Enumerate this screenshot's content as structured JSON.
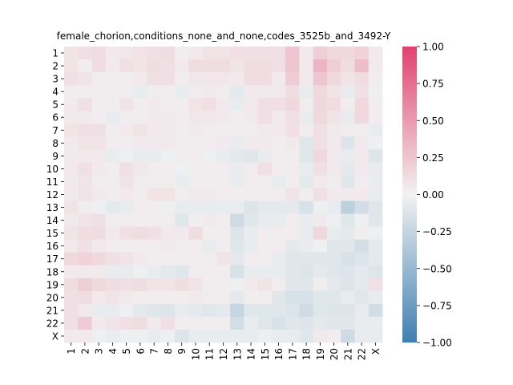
{
  "chart_data": {
    "type": "heatmap",
    "title": "female_chorion,conditions_none_and_none,codes_3525b_and_3492-Y",
    "xlabel": "",
    "ylabel": "",
    "x_categories": [
      "1",
      "2",
      "3",
      "4",
      "5",
      "6",
      "7",
      "8",
      "9",
      "10",
      "11",
      "12",
      "13",
      "14",
      "15",
      "16",
      "17",
      "18",
      "19",
      "20",
      "21",
      "22",
      "X"
    ],
    "y_categories": [
      "1",
      "2",
      "3",
      "4",
      "5",
      "6",
      "7",
      "8",
      "9",
      "10",
      "11",
      "12",
      "13",
      "14",
      "15",
      "16",
      "17",
      "18",
      "19",
      "20",
      "21",
      "22",
      "X"
    ],
    "values": [
      [
        0.08,
        0.1,
        0.12,
        0.05,
        0.06,
        0.08,
        0.1,
        0.12,
        0.03,
        0.05,
        0.08,
        0.08,
        0.1,
        0.1,
        0.1,
        0.1,
        0.25,
        0.05,
        0.2,
        0.15,
        0.15,
        0.18,
        0.05
      ],
      [
        0.08,
        0.03,
        0.12,
        0.05,
        0.1,
        0.08,
        0.12,
        0.1,
        0.05,
        0.12,
        0.12,
        0.12,
        0.08,
        0.12,
        0.12,
        0.1,
        0.25,
        0.05,
        0.35,
        0.2,
        0.12,
        0.3,
        0.05
      ],
      [
        0.1,
        0.08,
        0.03,
        0.03,
        0.03,
        0.05,
        0.1,
        0.1,
        0.03,
        0.06,
        0.06,
        0.06,
        0.05,
        0.12,
        0.12,
        0.05,
        0.22,
        0.05,
        0.25,
        0.15,
        0.08,
        0.12,
        0.03
      ],
      [
        0.03,
        0.03,
        0.03,
        0.03,
        0.03,
        -0.05,
        0.03,
        0.03,
        -0.05,
        0.03,
        0.05,
        0.03,
        -0.08,
        0.05,
        0.05,
        0.05,
        0.12,
        -0.05,
        0.15,
        0.08,
        -0.05,
        0.1,
        -0.03
      ],
      [
        0.05,
        0.1,
        0.03,
        0.03,
        0.08,
        0.03,
        0.05,
        0.03,
        0.03,
        0.08,
        0.1,
        0.05,
        -0.05,
        0.05,
        0.1,
        0.1,
        0.15,
        0.03,
        0.15,
        0.12,
        0.03,
        0.15,
        0.03
      ],
      [
        0.05,
        0.05,
        0.03,
        -0.05,
        0.03,
        0.03,
        0.05,
        0.05,
        0.03,
        0.06,
        0.06,
        0.05,
        0.03,
        0.05,
        0.1,
        0.05,
        0.1,
        -0.05,
        0.15,
        0.08,
        -0.05,
        0.15,
        0.03
      ],
      [
        0.08,
        0.1,
        0.1,
        0.03,
        0.05,
        0.08,
        0.05,
        0.05,
        0.03,
        0.05,
        0.03,
        0.03,
        0.03,
        0.03,
        0.05,
        0.05,
        0.1,
        0.03,
        0.1,
        0.05,
        0.03,
        0.03,
        -0.05
      ],
      [
        0.05,
        0.08,
        0.08,
        0.03,
        0.03,
        0.05,
        0.05,
        0.05,
        0.03,
        0.03,
        0.03,
        0.05,
        -0.05,
        0.05,
        0.05,
        0.03,
        0.05,
        -0.1,
        0.1,
        0.05,
        -0.12,
        0.05,
        -0.03
      ],
      [
        0.05,
        0.05,
        0.05,
        -0.05,
        -0.03,
        -0.05,
        -0.05,
        -0.03,
        0.03,
        0.03,
        -0.03,
        -0.05,
        -0.08,
        -0.1,
        -0.05,
        0.03,
        0.03,
        -0.1,
        0.15,
        0.05,
        -0.05,
        0.05,
        -0.12
      ],
      [
        0.05,
        0.1,
        0.05,
        0.03,
        0.1,
        0.06,
        0.03,
        0.03,
        -0.03,
        0.03,
        0.03,
        0.03,
        -0.05,
        0.03,
        0.1,
        0.03,
        0.03,
        -0.05,
        0.1,
        0.05,
        -0.08,
        0.05,
        -0.05
      ],
      [
        0.05,
        0.08,
        0.03,
        0.03,
        0.08,
        0.03,
        0.03,
        0.03,
        -0.05,
        0.03,
        0.03,
        0.03,
        -0.05,
        0.03,
        0.03,
        -0.05,
        0.03,
        -0.08,
        0.05,
        0.03,
        -0.1,
        0.03,
        -0.05
      ],
      [
        0.05,
        0.08,
        0.05,
        0.03,
        0.05,
        0.03,
        0.08,
        0.08,
        0.03,
        0.05,
        0.05,
        0.03,
        0.03,
        0.03,
        0.03,
        0.03,
        0.08,
        0.03,
        0.1,
        0.05,
        0.05,
        0.05,
        -0.05
      ],
      [
        0.08,
        0.03,
        -0.03,
        -0.08,
        -0.05,
        0.03,
        0.03,
        -0.03,
        -0.05,
        -0.05,
        -0.05,
        -0.05,
        -0.05,
        -0.12,
        -0.08,
        -0.08,
        -0.08,
        -0.15,
        -0.03,
        -0.05,
        -0.3,
        -0.18,
        -0.1
      ],
      [
        0.05,
        0.08,
        0.1,
        0.03,
        0.03,
        0.03,
        0.03,
        0.03,
        -0.1,
        0.03,
        0.05,
        0.03,
        -0.2,
        -0.1,
        -0.05,
        -0.05,
        0.03,
        -0.05,
        0.05,
        -0.03,
        -0.1,
        -0.03,
        -0.1
      ],
      [
        0.08,
        0.12,
        0.12,
        0.05,
        0.1,
        0.12,
        0.1,
        0.05,
        0.05,
        0.12,
        0.03,
        0.03,
        -0.12,
        -0.05,
        0.03,
        0.03,
        0.03,
        -0.05,
        0.15,
        -0.05,
        -0.08,
        0.03,
        -0.03
      ],
      [
        0.05,
        0.1,
        0.05,
        0.03,
        0.03,
        0.03,
        0.03,
        0.05,
        0.03,
        0.03,
        -0.05,
        0.03,
        -0.1,
        -0.05,
        0.03,
        0.03,
        -0.08,
        -0.05,
        -0.03,
        -0.1,
        -0.1,
        -0.18,
        -0.08
      ],
      [
        0.15,
        0.18,
        0.15,
        0.1,
        0.08,
        0.05,
        0.03,
        0.03,
        0.03,
        0.03,
        0.03,
        0.08,
        -0.08,
        0.03,
        0.03,
        -0.05,
        -0.1,
        -0.1,
        -0.1,
        -0.1,
        -0.15,
        -0.12,
        -0.08
      ],
      [
        0.05,
        0.05,
        0.05,
        -0.05,
        -0.05,
        -0.03,
        -0.05,
        -0.08,
        -0.1,
        0.03,
        0.03,
        0.03,
        -0.15,
        -0.05,
        -0.05,
        -0.05,
        -0.1,
        -0.12,
        -0.08,
        -0.1,
        -0.12,
        -0.08,
        -0.12
      ],
      [
        0.12,
        0.2,
        0.15,
        0.12,
        0.1,
        0.12,
        0.08,
        0.08,
        0.12,
        0.08,
        0.03,
        0.03,
        -0.03,
        0.05,
        0.08,
        0.03,
        -0.1,
        -0.1,
        0.03,
        -0.08,
        -0.12,
        -0.08,
        0.1
      ],
      [
        0.1,
        0.12,
        0.05,
        0.08,
        0.05,
        0.03,
        0.03,
        0.03,
        0.03,
        0.05,
        0.03,
        0.03,
        -0.08,
        0.03,
        0.03,
        -0.1,
        -0.15,
        -0.15,
        -0.1,
        -0.1,
        -0.05,
        -0.1,
        -0.05
      ],
      [
        0.1,
        0.05,
        -0.05,
        -0.05,
        -0.03,
        -0.08,
        -0.1,
        -0.12,
        -0.05,
        -0.08,
        -0.1,
        -0.08,
        -0.25,
        -0.1,
        -0.1,
        -0.1,
        -0.12,
        -0.2,
        -0.1,
        -0.12,
        -0.12,
        -0.05,
        -0.18
      ],
      [
        0.1,
        0.22,
        0.05,
        0.08,
        0.1,
        0.12,
        0.05,
        0.1,
        0.03,
        0.03,
        0.03,
        0.03,
        -0.18,
        -0.05,
        -0.1,
        -0.15,
        -0.1,
        -0.12,
        -0.08,
        -0.1,
        -0.1,
        -0.05,
        -0.05
      ],
      [
        0.05,
        0.05,
        -0.03,
        -0.05,
        -0.03,
        -0.03,
        -0.05,
        -0.03,
        -0.12,
        -0.05,
        -0.05,
        -0.05,
        -0.05,
        -0.05,
        -0.03,
        -0.05,
        -0.05,
        -0.1,
        0.05,
        0.03,
        -0.2,
        -0.05,
        -0.05
      ]
    ],
    "vmin": -1.0,
    "vmax": 1.0,
    "colorbar_ticks": [
      "1.00",
      "0.75",
      "0.50",
      "0.25",
      "0.00",
      "−0.25",
      "−0.50",
      "−0.75",
      "−1.00"
    ],
    "colorbar_tick_values": [
      1.0,
      0.75,
      0.5,
      0.25,
      0.0,
      -0.25,
      -0.5,
      -0.75,
      -1.0
    ],
    "colormap": {
      "negative": "#3f7fb0",
      "center": "#f2f2f2",
      "positive": "#e0426e"
    },
    "grid": false,
    "legend": "colorbar-right"
  }
}
